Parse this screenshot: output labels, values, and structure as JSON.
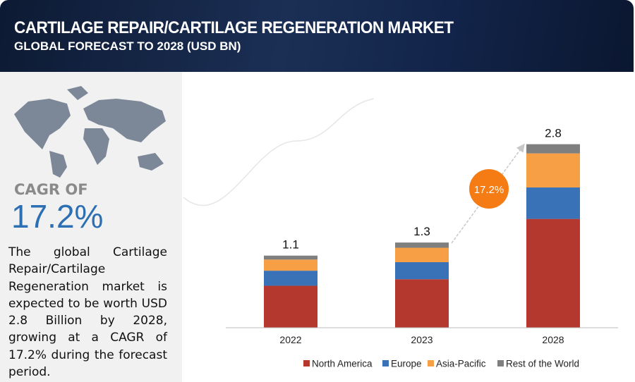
{
  "header": {
    "title": "CARTILAGE REPAIR/CARTILAGE REGENERATION MARKET",
    "subtitle": "GLOBAL FORECAST TO 2028 (USD BN)"
  },
  "sidebar": {
    "cagr_label": "CAGR OF",
    "cagr_value": "17.2%",
    "description": "The global Cartilage Repair/Cartilage Regeneration market is expected to be worth USD 2.8 Billion by 2028, growing at a CAGR of 17.2% during the forecast period."
  },
  "chart_data": {
    "type": "bar",
    "stacked": true,
    "categories": [
      "2022",
      "2023",
      "2028"
    ],
    "series": [
      {
        "name": "North America",
        "color": "#b5382f",
        "values": [
          0.64,
          0.74,
          1.66
        ]
      },
      {
        "name": "Europe",
        "color": "#3a72b8",
        "values": [
          0.23,
          0.26,
          0.48
        ]
      },
      {
        "name": "Asia-Pacific",
        "color": "#f79f45",
        "values": [
          0.17,
          0.22,
          0.52
        ]
      },
      {
        "name": "Rest of the World",
        "color": "#7f7f7f",
        "values": [
          0.06,
          0.08,
          0.14
        ]
      }
    ],
    "totals": [
      1.1,
      1.3,
      2.8
    ],
    "annotation": "17.2%",
    "ylim": [
      0,
      3
    ]
  }
}
